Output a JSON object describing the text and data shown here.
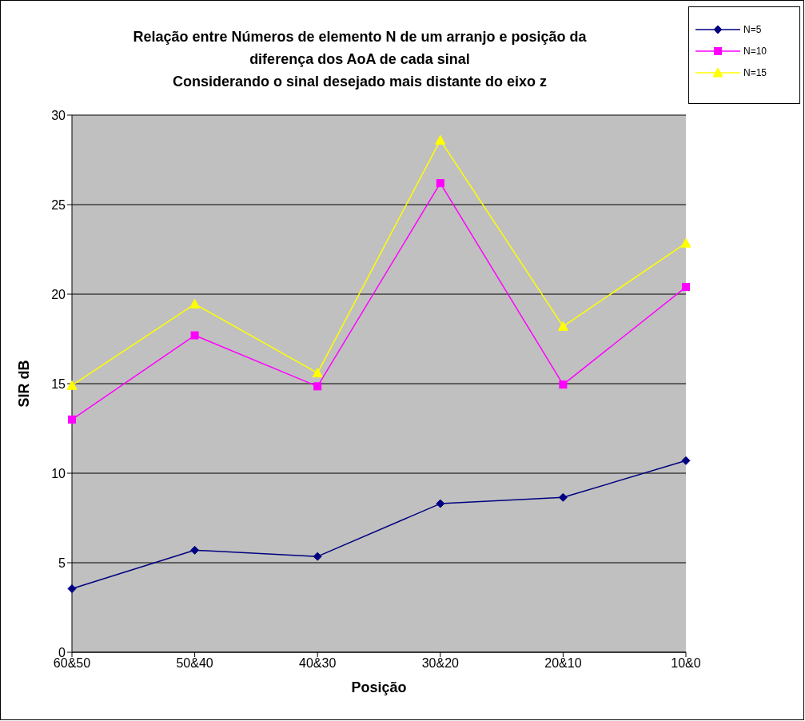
{
  "chart_data": {
    "type": "line",
    "title": "Relação entre Números de elemento N de um arranjo e posição da\ndiferença dos AoA de cada sinal\nConsiderando o sinal desejado mais distante do eixo z",
    "xlabel": "Posição",
    "ylabel": "SIR dB",
    "categories": [
      "60&50",
      "50&40",
      "40&30",
      "30&20",
      "20&10",
      "10&0"
    ],
    "series": [
      {
        "name": "N=5",
        "color": "#000080",
        "marker": "diamond",
        "values": [
          3.55,
          5.7,
          5.35,
          8.3,
          8.65,
          10.7
        ]
      },
      {
        "name": "N=10",
        "color": "#ff00ff",
        "marker": "square",
        "values": [
          13,
          17.7,
          14.85,
          26.2,
          14.95,
          20.4
        ]
      },
      {
        "name": "N=15",
        "color": "#ffff00",
        "marker": "triangle",
        "values": [
          14.9,
          19.45,
          15.6,
          28.6,
          18.2,
          22.85
        ]
      }
    ],
    "ylim": [
      0,
      30
    ],
    "yticks": [
      0,
      5,
      10,
      15,
      20,
      25,
      30
    ],
    "grid": "y",
    "legend": "top right"
  }
}
